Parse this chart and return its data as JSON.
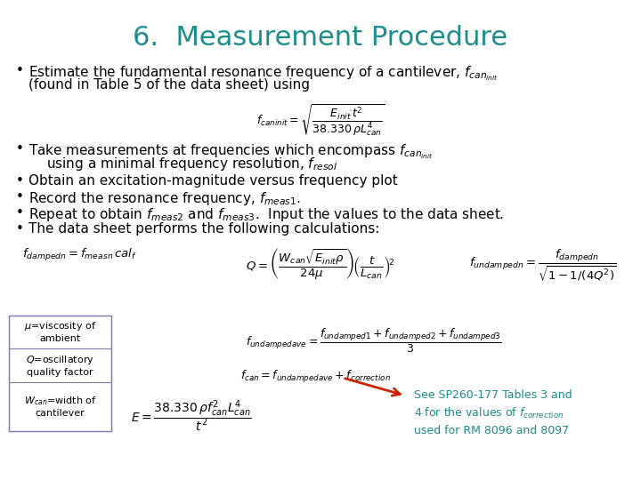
{
  "title": "6.  Measurement Procedure",
  "title_color": "#1a8c8c",
  "title_fontsize": 22,
  "bg_color": "#ffffff",
  "bullet_color": "#000000",
  "bullet_fontsize": 11.0,
  "legend_border_color": "#7777aa",
  "legend_texts": [
    "$\\mu$=viscosity of\nambient",
    "$Q$=oscillatory\nquality factor",
    "$W_{can}$=width of\ncantilever"
  ],
  "arrow_color": "#cc2200",
  "note_color": "#1a8c8c",
  "note_text": "See SP260-177 Tables 3 and\n4 for the values of $f_{correction}$\nused for RM 8096 and 8097"
}
